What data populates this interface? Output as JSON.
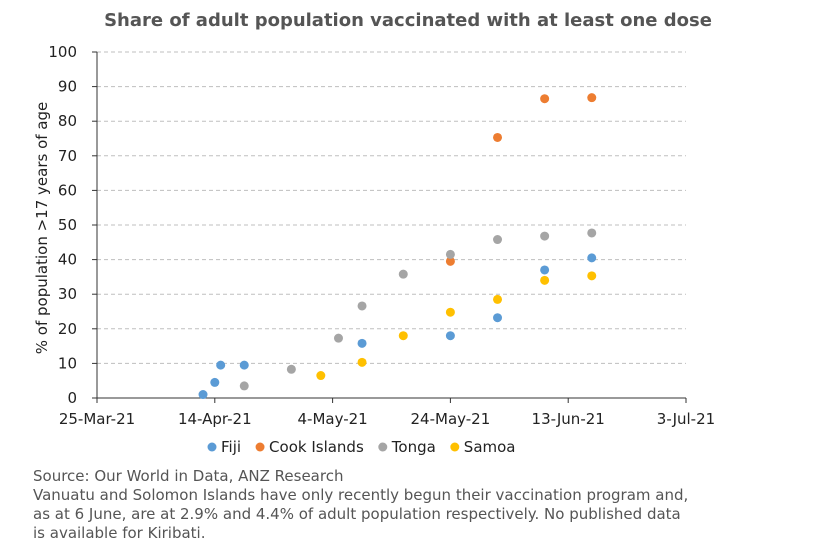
{
  "chart_data": {
    "type": "scatter",
    "title": "Share of adult population vaccinated with at least one dose",
    "xlabel": "",
    "ylabel": "% of population >17 years of age",
    "x_axis": {
      "type": "date",
      "range": [
        "2021-03-25",
        "2021-07-03"
      ],
      "tick_labels": [
        "25-Mar-21",
        "14-Apr-21",
        "4-May-21",
        "24-May-21",
        "13-Jun-21",
        "3-Jul-21"
      ]
    },
    "ylim": [
      0,
      100
    ],
    "y_ticks": [
      0,
      10,
      20,
      30,
      40,
      50,
      60,
      70,
      80,
      90,
      100
    ],
    "grid": "horizontal dashed",
    "legend_position": "bottom",
    "series": [
      {
        "name": "Fiji",
        "color": "#5b9bd5",
        "points": [
          [
            "2021-04-12",
            1
          ],
          [
            "2021-04-14",
            4.5
          ],
          [
            "2021-04-15",
            9.5
          ],
          [
            "2021-04-19",
            9.5
          ],
          [
            "2021-05-09",
            15.8
          ],
          [
            "2021-05-24",
            18
          ],
          [
            "2021-06-01",
            23.2
          ],
          [
            "2021-06-09",
            37
          ],
          [
            "2021-06-17",
            40.5
          ]
        ]
      },
      {
        "name": "Cook Islands",
        "color": "#ed7d31",
        "points": [
          [
            "2021-05-24",
            39.5
          ],
          [
            "2021-06-01",
            75.3
          ],
          [
            "2021-06-09",
            86.5
          ],
          [
            "2021-06-17",
            86.8
          ]
        ]
      },
      {
        "name": "Tonga",
        "color": "#a5a5a5",
        "points": [
          [
            "2021-04-19",
            3.5
          ],
          [
            "2021-04-27",
            8.3
          ],
          [
            "2021-05-05",
            17.3
          ],
          [
            "2021-05-09",
            26.6
          ],
          [
            "2021-05-16",
            35.8
          ],
          [
            "2021-05-24",
            41.5
          ],
          [
            "2021-06-01",
            45.8
          ],
          [
            "2021-06-09",
            46.8
          ],
          [
            "2021-06-17",
            47.7
          ]
        ]
      },
      {
        "name": "Samoa",
        "color": "#ffc000",
        "points": [
          [
            "2021-05-02",
            6.5
          ],
          [
            "2021-05-09",
            10.3
          ],
          [
            "2021-05-16",
            18
          ],
          [
            "2021-05-24",
            24.8
          ],
          [
            "2021-06-01",
            28.5
          ],
          [
            "2021-06-09",
            34
          ],
          [
            "2021-06-17",
            35.3
          ]
        ]
      }
    ]
  },
  "notes": {
    "source": "Source: Our World in Data, ANZ Research",
    "line1": "Vanuatu and Solomon Islands have only recently begun their vaccination program and,",
    "line2": "as at 6 June, are at 2.9% and 4.4% of adult population respectively. No published data",
    "line3": "is available for Kiribati."
  }
}
